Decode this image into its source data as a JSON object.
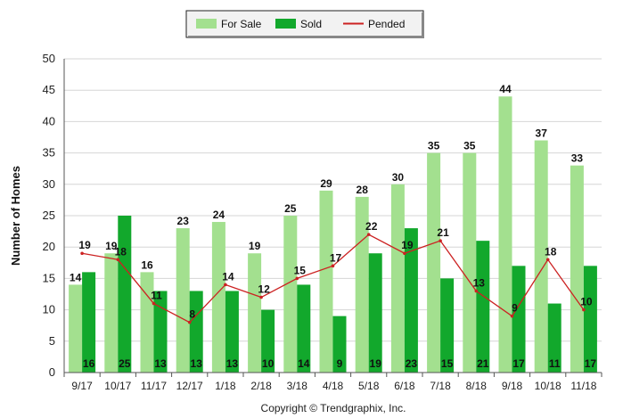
{
  "chart_data": {
    "type": "bar",
    "ylabel": "Number of Homes",
    "ylim": [
      0,
      50
    ],
    "yticks": [
      0,
      5,
      10,
      15,
      20,
      25,
      30,
      35,
      40,
      45,
      50
    ],
    "categories": [
      "9/17",
      "10/17",
      "11/17",
      "12/17",
      "1/18",
      "2/18",
      "3/18",
      "4/18",
      "5/18",
      "6/18",
      "7/18",
      "8/18",
      "9/18",
      "10/18",
      "11/18"
    ],
    "series": [
      {
        "name": "For Sale",
        "kind": "bar",
        "color": "#a3e08f",
        "values": [
          14,
          19,
          16,
          23,
          24,
          19,
          25,
          29,
          28,
          30,
          35,
          35,
          44,
          37,
          33
        ]
      },
      {
        "name": "Sold",
        "kind": "bar",
        "color": "#12a82c",
        "values": [
          16,
          25,
          13,
          13,
          13,
          10,
          14,
          9,
          19,
          23,
          15,
          21,
          17,
          11,
          17
        ]
      },
      {
        "name": "Pended",
        "kind": "line",
        "color": "#cc2222",
        "values": [
          19,
          18,
          11,
          8,
          14,
          12,
          15,
          17,
          22,
          19,
          21,
          13,
          9,
          18,
          10
        ]
      }
    ],
    "grid": true,
    "legend": "top-center"
  },
  "footer": {
    "copyright": "Copyright © Trendgraphix, Inc."
  }
}
